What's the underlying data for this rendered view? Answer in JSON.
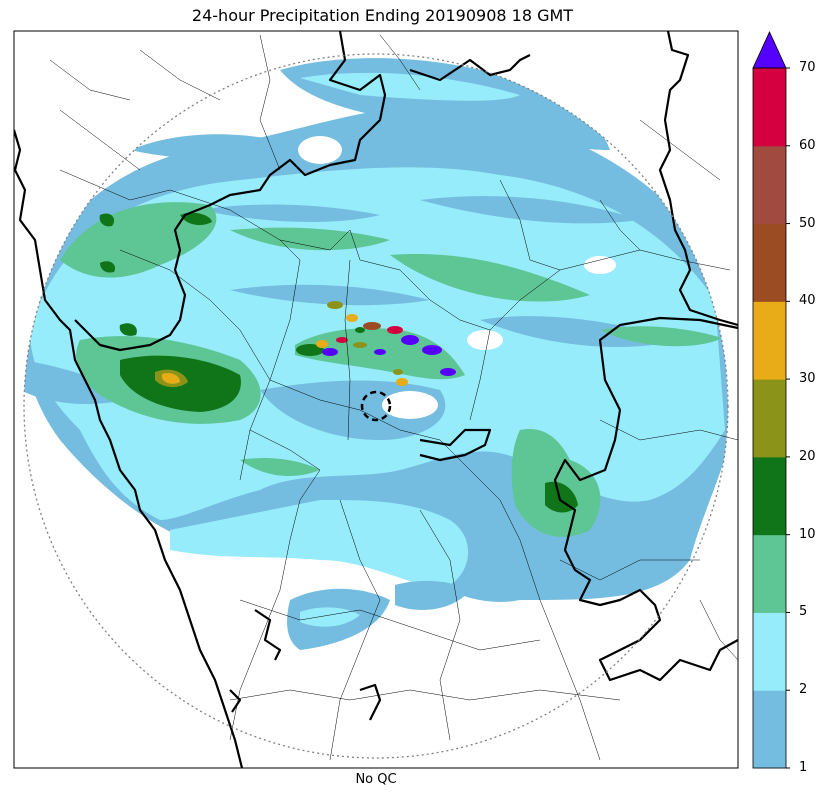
{
  "title": "24-hour Precipitation Ending 20190908 18 GMT",
  "xlabel": "No QC",
  "colorbar": {
    "levels": [
      "1",
      "2",
      "5",
      "10",
      "20",
      "30",
      "40",
      "50",
      "60",
      "70"
    ],
    "colors": [
      "#74bde0",
      "#97ecfb",
      "#5ec595",
      "#0f7518",
      "#8b9418",
      "#e7ac17",
      "#9c4c22",
      "#a14a3f",
      "#d4003f"
    ],
    "extend_color": "#5500ff",
    "extend": "max"
  }
}
